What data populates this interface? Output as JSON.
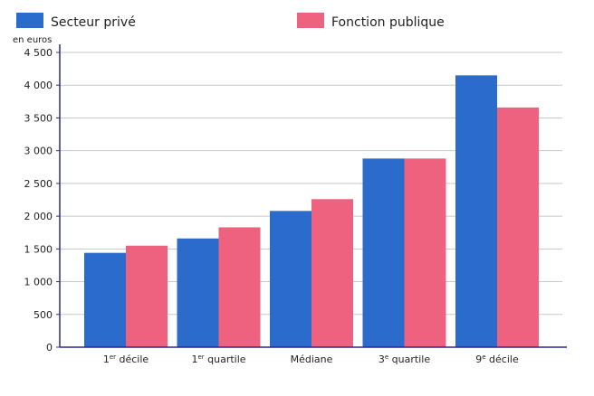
{
  "chart_data": {
    "type": "bar",
    "unit_label": "en euros",
    "categories": [
      {
        "base": "1",
        "sup": "er",
        "rest": " décile"
      },
      {
        "base": "1",
        "sup": "er",
        "rest": " quartile"
      },
      {
        "base": "Médiane",
        "sup": "",
        "rest": ""
      },
      {
        "base": "3",
        "sup": "e",
        "rest": " quartile"
      },
      {
        "base": "9",
        "sup": "e",
        "rest": " décile"
      }
    ],
    "series": [
      {
        "name": "Secteur privé",
        "color": "#2b6bcc",
        "values": [
          1440,
          1660,
          2080,
          2880,
          4150
        ]
      },
      {
        "name": "Fonction publique",
        "color": "#ee6280",
        "values": [
          1550,
          1830,
          2260,
          2880,
          3660
        ]
      }
    ],
    "ylim": [
      0,
      4500
    ],
    "yticks": [
      0,
      500,
      1000,
      1500,
      2000,
      2500,
      3000,
      3500,
      4000,
      4500
    ],
    "ytick_labels": [
      "0",
      "500",
      "1 000",
      "1 500",
      "2 000",
      "2 500",
      "3 000",
      "3 500",
      "4 000",
      "4 500"
    ],
    "grid": true,
    "legend_position": "top"
  }
}
